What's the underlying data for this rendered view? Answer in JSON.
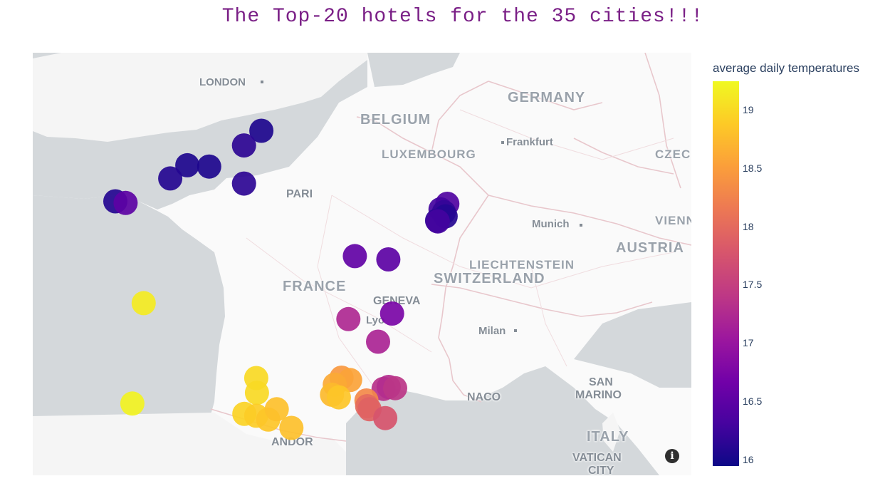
{
  "title": "The Top-20 hotels for the 35 cities!!!",
  "map_labels": {
    "london": "LONDON",
    "belgium": "BELGIUM",
    "germany": "GERMANY",
    "frankfurt": "Frankfurt",
    "luxembourg": "LUXEMBOURG",
    "czech": "CZEC",
    "paris": "PARI",
    "munich": "Munich",
    "vienna": "VIENN",
    "liechtenstein": "LIECHTENSTEIN",
    "austria": "AUSTRIA",
    "switzerland": "SWITZERLAND",
    "france": "FRANCE",
    "geneva": "GENEVA",
    "lyon": "Lyo",
    "milan": "Milan",
    "san": "SAN",
    "marino": "MARINO",
    "monaco": "NACO",
    "italy": "ITALY",
    "andorra": "ANDOR",
    "vatican": "VATICAN",
    "city": "CITY"
  },
  "info_icon": "info-icon",
  "colorbar": {
    "title": "average daily temperatures",
    "colorscale": "Plasma",
    "min": 15.95,
    "max": 19.25,
    "ticks": [
      "16",
      "16.5",
      "17",
      "17.5",
      "18",
      "18.5",
      "19"
    ]
  },
  "chart_data": {
    "type": "scatter",
    "title": "The Top-20 hotels for the 35 cities!!!",
    "color_label": "average daily temperatures",
    "color_range": [
      15.95,
      19.25
    ],
    "x_unit": "longitude",
    "y_unit": "latitude",
    "points": [
      {
        "lon": 2.3,
        "lat": 50.29,
        "temp": 16.05
      },
      {
        "lon": 1.79,
        "lat": 49.95,
        "temp": 16.15
      },
      {
        "lon": 0.13,
        "lat": 49.49,
        "temp": 16.05
      },
      {
        "lon": -0.37,
        "lat": 49.18,
        "temp": 16.1
      },
      {
        "lon": 0.77,
        "lat": 49.46,
        "temp": 16.05
      },
      {
        "lon": 1.79,
        "lat": 49.06,
        "temp": 16.15
      },
      {
        "lon": -1.98,
        "lat": 48.64,
        "temp": 16.1
      },
      {
        "lon": -1.68,
        "lat": 48.6,
        "temp": 16.5
      },
      {
        "lon": 7.75,
        "lat": 48.58,
        "temp": 16.4
      },
      {
        "lon": 7.55,
        "lat": 48.45,
        "temp": 16.3
      },
      {
        "lon": 7.65,
        "lat": 48.38,
        "temp": 16.2
      },
      {
        "lon": 7.7,
        "lat": 48.28,
        "temp": 16.1
      },
      {
        "lon": 7.45,
        "lat": 48.18,
        "temp": 16.15
      },
      {
        "lon": 7.47,
        "lat": 48.16,
        "temp": 16.3
      },
      {
        "lon": 5.04,
        "lat": 47.32,
        "temp": 16.55
      },
      {
        "lon": 6.02,
        "lat": 47.24,
        "temp": 16.5
      },
      {
        "lon": -1.15,
        "lat": 46.16,
        "temp": 19.15
      },
      {
        "lon": 6.13,
        "lat": 45.9,
        "temp": 16.75
      },
      {
        "lon": 4.85,
        "lat": 45.76,
        "temp": 17.25
      },
      {
        "lon": 5.72,
        "lat": 45.19,
        "temp": 17.2
      },
      {
        "lon": 2.15,
        "lat": 44.26,
        "temp": 19.0
      },
      {
        "lon": 4.65,
        "lat": 44.27,
        "temp": 18.45
      },
      {
        "lon": 4.9,
        "lat": 44.21,
        "temp": 18.55
      },
      {
        "lon": 4.45,
        "lat": 44.09,
        "temp": 18.6
      },
      {
        "lon": 5.88,
        "lat": 43.98,
        "temp": 17.35
      },
      {
        "lon": 6.03,
        "lat": 44.03,
        "temp": 17.3
      },
      {
        "lon": 6.22,
        "lat": 44.0,
        "temp": 17.4
      },
      {
        "lon": -1.48,
        "lat": 43.6,
        "temp": 19.2
      },
      {
        "lon": 2.17,
        "lat": 43.88,
        "temp": 19.0
      },
      {
        "lon": 4.37,
        "lat": 43.83,
        "temp": 18.75
      },
      {
        "lon": 4.57,
        "lat": 43.76,
        "temp": 18.85
      },
      {
        "lon": 5.38,
        "lat": 43.68,
        "temp": 18.3
      },
      {
        "lon": 5.4,
        "lat": 43.53,
        "temp": 18.0
      },
      {
        "lon": 5.47,
        "lat": 43.45,
        "temp": 17.9
      },
      {
        "lon": 5.93,
        "lat": 43.22,
        "temp": 17.75
      },
      {
        "lon": 1.8,
        "lat": 43.33,
        "temp": 18.95
      },
      {
        "lon": 2.15,
        "lat": 43.28,
        "temp": 18.9
      },
      {
        "lon": 2.5,
        "lat": 43.18,
        "temp": 18.85
      },
      {
        "lon": 2.75,
        "lat": 43.45,
        "temp": 18.8
      },
      {
        "lon": 3.18,
        "lat": 42.96,
        "temp": 18.8
      }
    ]
  }
}
